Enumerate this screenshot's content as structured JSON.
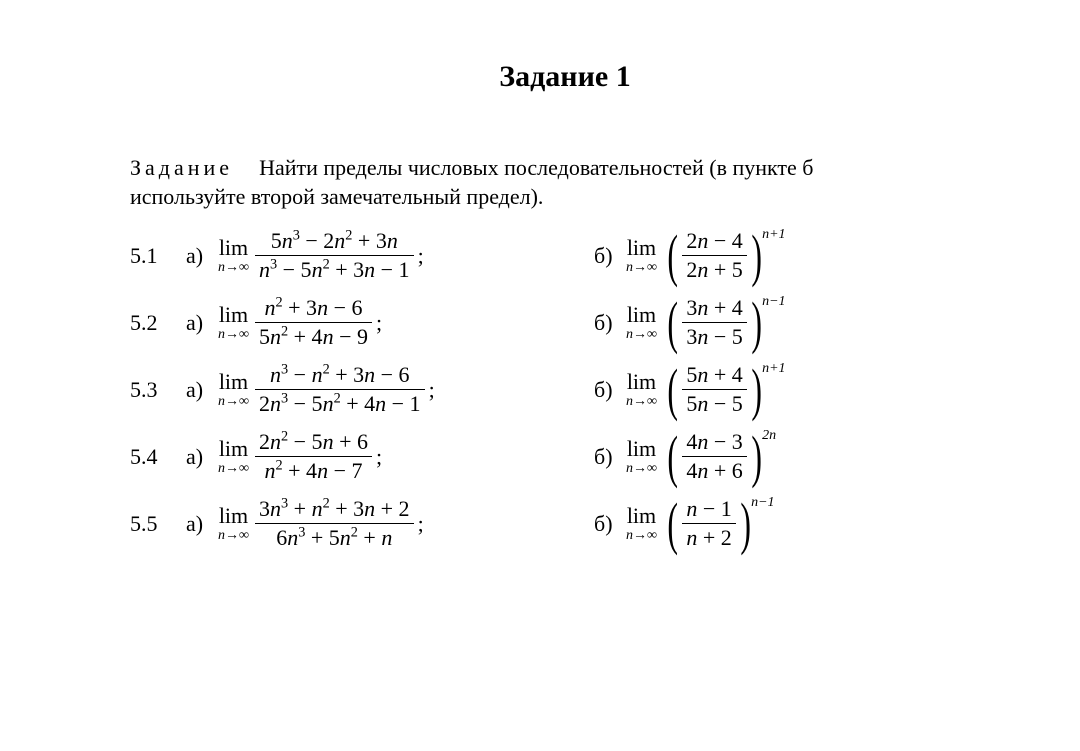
{
  "title": "Задание 1",
  "task_label": "Задание",
  "task_text_1": "Найти пределы числовых последовательностей (в пункте б",
  "task_text_2": "используйте второй замечательный предел).",
  "lim_word": "lim",
  "lim_sub": "n→∞",
  "label_a": "а)",
  "label_b": "б)",
  "semicolon": ";",
  "rows": [
    {
      "num": "5.1",
      "a_num": "5<i>n</i><sup>3</sup> − 2<i>n</i><sup>2</sup> + 3<i>n</i>",
      "a_den": "<i>n</i><sup>3</sup> − 5<i>n</i><sup>2</sup> + 3<i>n</i> − 1",
      "b_num": "2<i>n</i> − 4",
      "b_den": "2<i>n</i> + 5",
      "b_exp": "<i>n</i>+1"
    },
    {
      "num": "5.2",
      "a_num": "<i>n</i><sup>2</sup> + 3<i>n</i> − 6",
      "a_den": "5<i>n</i><sup>2</sup> + 4<i>n</i> − 9",
      "b_num": "3<i>n</i> + 4",
      "b_den": "3<i>n</i> − 5",
      "b_exp": "<i>n</i>−1"
    },
    {
      "num": "5.3",
      "a_num": "<i>n</i><sup>3</sup> − <i>n</i><sup>2</sup> + 3<i>n</i> − 6",
      "a_den": "2<i>n</i><sup>3</sup> − 5<i>n</i><sup>2</sup> + 4<i>n</i> − 1",
      "b_num": "5<i>n</i> + 4",
      "b_den": "5<i>n</i> − 5",
      "b_exp": "<i>n</i>+1"
    },
    {
      "num": "5.4",
      "a_num": "2<i>n</i><sup>2</sup> − 5<i>n</i> + 6",
      "a_den": "<i>n</i><sup>2</sup> + 4<i>n</i> − 7",
      "b_num": "4<i>n</i> − 3",
      "b_den": "4<i>n</i> + 6",
      "b_exp": "2<i>n</i>"
    },
    {
      "num": "5.5",
      "a_num": "3<i>n</i><sup>3</sup> + <i>n</i><sup>2</sup> + 3<i>n</i> + 2",
      "a_den": "6<i>n</i><sup>3</sup> + 5<i>n</i><sup>2</sup> + <i>n</i>",
      "b_num": "<i>n</i> − 1",
      "b_den": "<i>n</i> + 2",
      "b_exp": "<i>n</i>−1"
    }
  ],
  "colors": {
    "text": "#000000",
    "background": "#ffffff"
  },
  "typography": {
    "family": "Times New Roman",
    "title_size_pt": 22,
    "body_size_pt": 16
  }
}
